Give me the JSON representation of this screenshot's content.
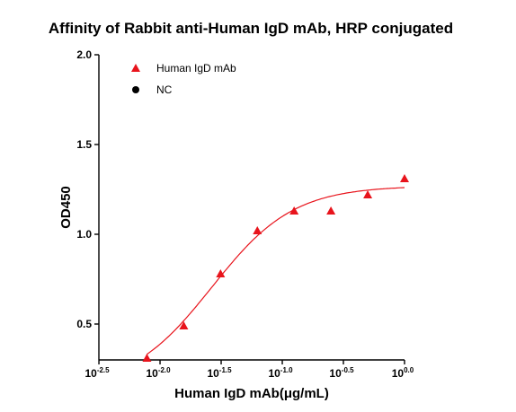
{
  "chart_data": {
    "type": "scatter",
    "title": "Affinity of  Rabbit anti-Human IgD mAb, HRP conjugated",
    "xlabel": "Human IgD mAb(μg/mL)",
    "ylabel": "OD450",
    "x_scale": "log10",
    "xlim": [
      0.00316,
      1.0
    ],
    "ylim": [
      0.3,
      2.0
    ],
    "x_ticks": [
      {
        "base": "10",
        "exp": "-2.5",
        "value": 0.003162
      },
      {
        "base": "10",
        "exp": "-2.0",
        "value": 0.01
      },
      {
        "base": "10",
        "exp": "-1.5",
        "value": 0.03162
      },
      {
        "base": "10",
        "exp": "-1.0",
        "value": 0.1
      },
      {
        "base": "10",
        "exp": "-0.5",
        "value": 0.3162
      },
      {
        "base": "10",
        "exp": "0.0",
        "value": 1.0
      }
    ],
    "y_ticks": [
      {
        "label": "0.5",
        "value": 0.5
      },
      {
        "label": "1.0",
        "value": 1.0
      },
      {
        "label": "1.5",
        "value": 1.5
      },
      {
        "label": "2.0",
        "value": 2.0
      }
    ],
    "grid": false,
    "legend_position": "top-left",
    "series": [
      {
        "name": "Human IgD mAb",
        "marker": "triangle",
        "color": "#e8141c",
        "x": [
          0.00781,
          0.01563,
          0.03125,
          0.0625,
          0.125,
          0.25,
          0.5,
          1.0
        ],
        "y": [
          0.31,
          0.49,
          0.78,
          1.02,
          1.13,
          1.13,
          1.22,
          1.31
        ],
        "fit": {
          "type": "4PL",
          "bottom": 0.14,
          "top": 1.27,
          "ec50": 0.0265,
          "hill": 1.3,
          "color": "#e8141c"
        }
      },
      {
        "name": "NC",
        "marker": "circle",
        "color": "#000000",
        "x": [],
        "y": []
      }
    ]
  }
}
